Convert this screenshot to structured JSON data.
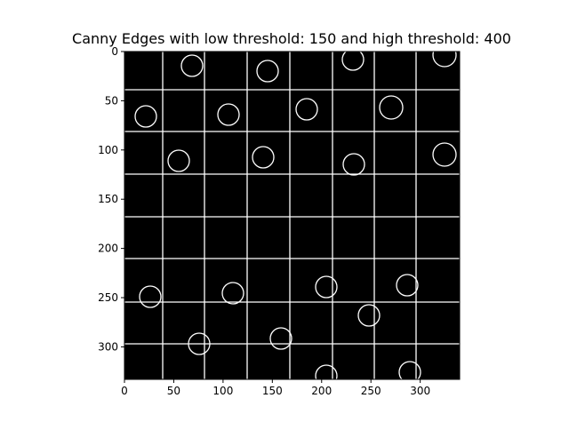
{
  "chart_data": {
    "type": "image",
    "title": "Canny Edges with low threshold: 150 and high threshold: 400",
    "xlim": [
      0,
      340
    ],
    "ylim": [
      333,
      0
    ],
    "xticks": [
      0,
      50,
      100,
      150,
      200,
      250,
      300
    ],
    "yticks": [
      0,
      50,
      100,
      150,
      200,
      250,
      300
    ]
  }
}
